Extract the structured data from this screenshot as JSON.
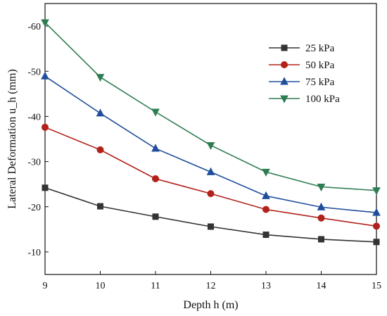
{
  "chart_data": {
    "type": "line",
    "xlabel": "Depth h (m)",
    "ylabel": "Lateral Deformation u_h (mm)",
    "x": [
      9,
      10,
      11,
      12,
      13,
      14,
      15
    ],
    "xlim": [
      9,
      15
    ],
    "ylim": [
      -65,
      -5
    ],
    "y_reversed": true,
    "xticks": [
      9,
      10,
      11,
      12,
      13,
      14,
      15
    ],
    "yticks": [
      -10,
      -20,
      -30,
      -40,
      -50,
      -60
    ],
    "grid": false,
    "legend_position": "top-right",
    "series": [
      {
        "name": "25 kPa",
        "color": "#333333",
        "marker": "square",
        "values": [
          -24.2,
          -20.1,
          -17.8,
          -15.6,
          -13.8,
          -12.8,
          -12.2
        ]
      },
      {
        "name": "50 kPa",
        "color": "#b2221b",
        "marker": "circle",
        "values": [
          -37.6,
          -32.6,
          -26.2,
          -22.9,
          -19.4,
          -17.5,
          -15.7
        ]
      },
      {
        "name": "75 kPa",
        "color": "#1f4e9c",
        "marker": "triangle-up",
        "values": [
          -48.9,
          -40.7,
          -32.9,
          -27.7,
          -22.4,
          -19.9,
          -18.7
        ]
      },
      {
        "name": "100 kPa",
        "color": "#2e7d52",
        "marker": "triangle-down",
        "values": [
          -60.8,
          -48.7,
          -41.0,
          -33.6,
          -27.7,
          -24.4,
          -23.6
        ]
      }
    ]
  }
}
